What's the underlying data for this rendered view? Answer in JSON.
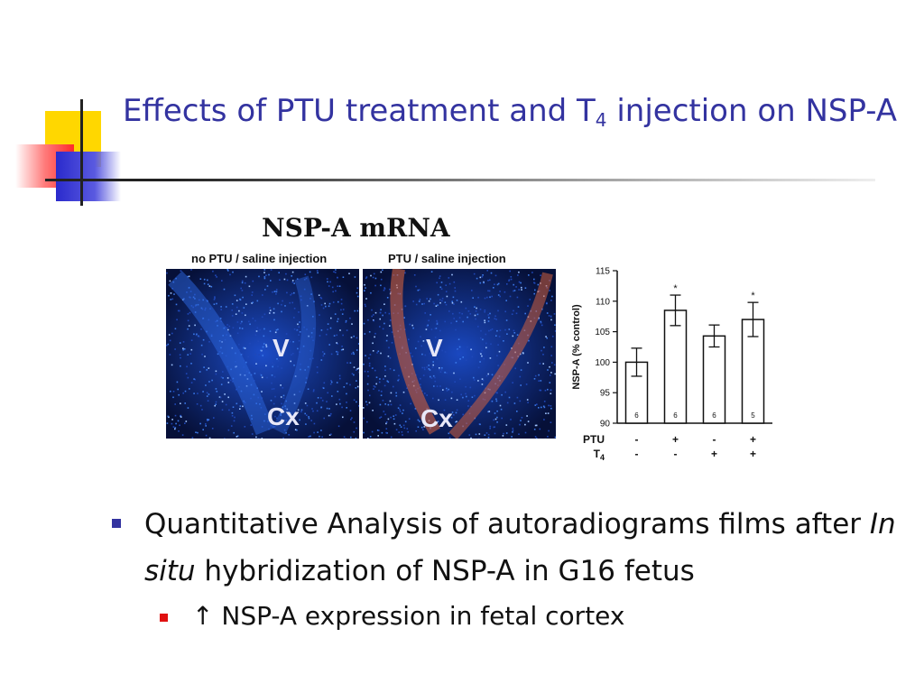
{
  "slide": {
    "title_before": "Effects of PTU treatment and T",
    "title_sub": "4",
    "title_after": " injection on NSP-A"
  },
  "figure": {
    "title": "NSP-A mRNA",
    "panels": [
      {
        "label": "no PTU / saline injection",
        "v_label": "V",
        "cx_label": "Cx"
      },
      {
        "label": "PTU / saline injection",
        "v_label": "V",
        "cx_label": "Cx"
      }
    ]
  },
  "chart_data": {
    "type": "bar",
    "ylabel": "NSP-A (% control)",
    "ylim": [
      90,
      115
    ],
    "yticks": [
      90,
      95,
      100,
      105,
      110,
      115
    ],
    "groups": [
      {
        "PTU": "-",
        "T4": "-",
        "value": 100.0,
        "error": 2.3,
        "n": "6",
        "significant": false
      },
      {
        "PTU": "+",
        "T4": "-",
        "value": 108.5,
        "error": 2.5,
        "n": "6",
        "significant": true
      },
      {
        "PTU": "-",
        "T4": "+",
        "value": 104.3,
        "error": 1.8,
        "n": "6",
        "significant": false
      },
      {
        "PTU": "+",
        "T4": "+",
        "value": 107.0,
        "error": 2.8,
        "n": "5",
        "significant": true
      }
    ],
    "row_labels": [
      "PTU",
      "T"
    ],
    "row_label_sub": "4",
    "significance_mark": "*",
    "bar_color": "#ffffff",
    "stroke_color": "#111111"
  },
  "bullets": {
    "main_before": "Quantitative Analysis of autoradiograms films after ",
    "main_italic": "In situ",
    "main_after": " hybridization of NSP-A in G16 fetus",
    "sub_arrow": "↑",
    "sub_text": " NSP-A expression in fetal cortex"
  },
  "colors": {
    "title": "#3333a0",
    "bullet_main": "#3333a0",
    "bullet_sub": "#e01010"
  }
}
